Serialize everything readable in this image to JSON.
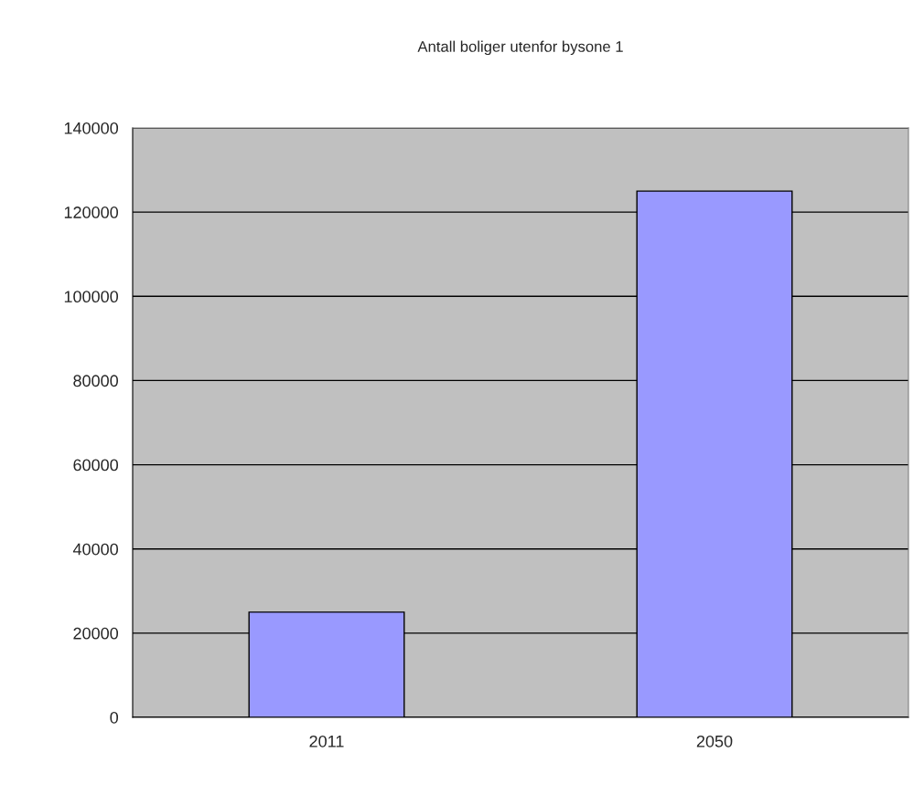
{
  "chart_data": {
    "type": "bar",
    "title": "Antall boliger utenfor bysone 1",
    "categories": [
      "2011",
      "2050"
    ],
    "values": [
      25000,
      125000
    ],
    "color": "#9999ff",
    "ylim": [
      0,
      140000
    ],
    "yticks": [
      0,
      20000,
      40000,
      60000,
      80000,
      100000,
      120000,
      140000
    ],
    "grid": "y"
  }
}
